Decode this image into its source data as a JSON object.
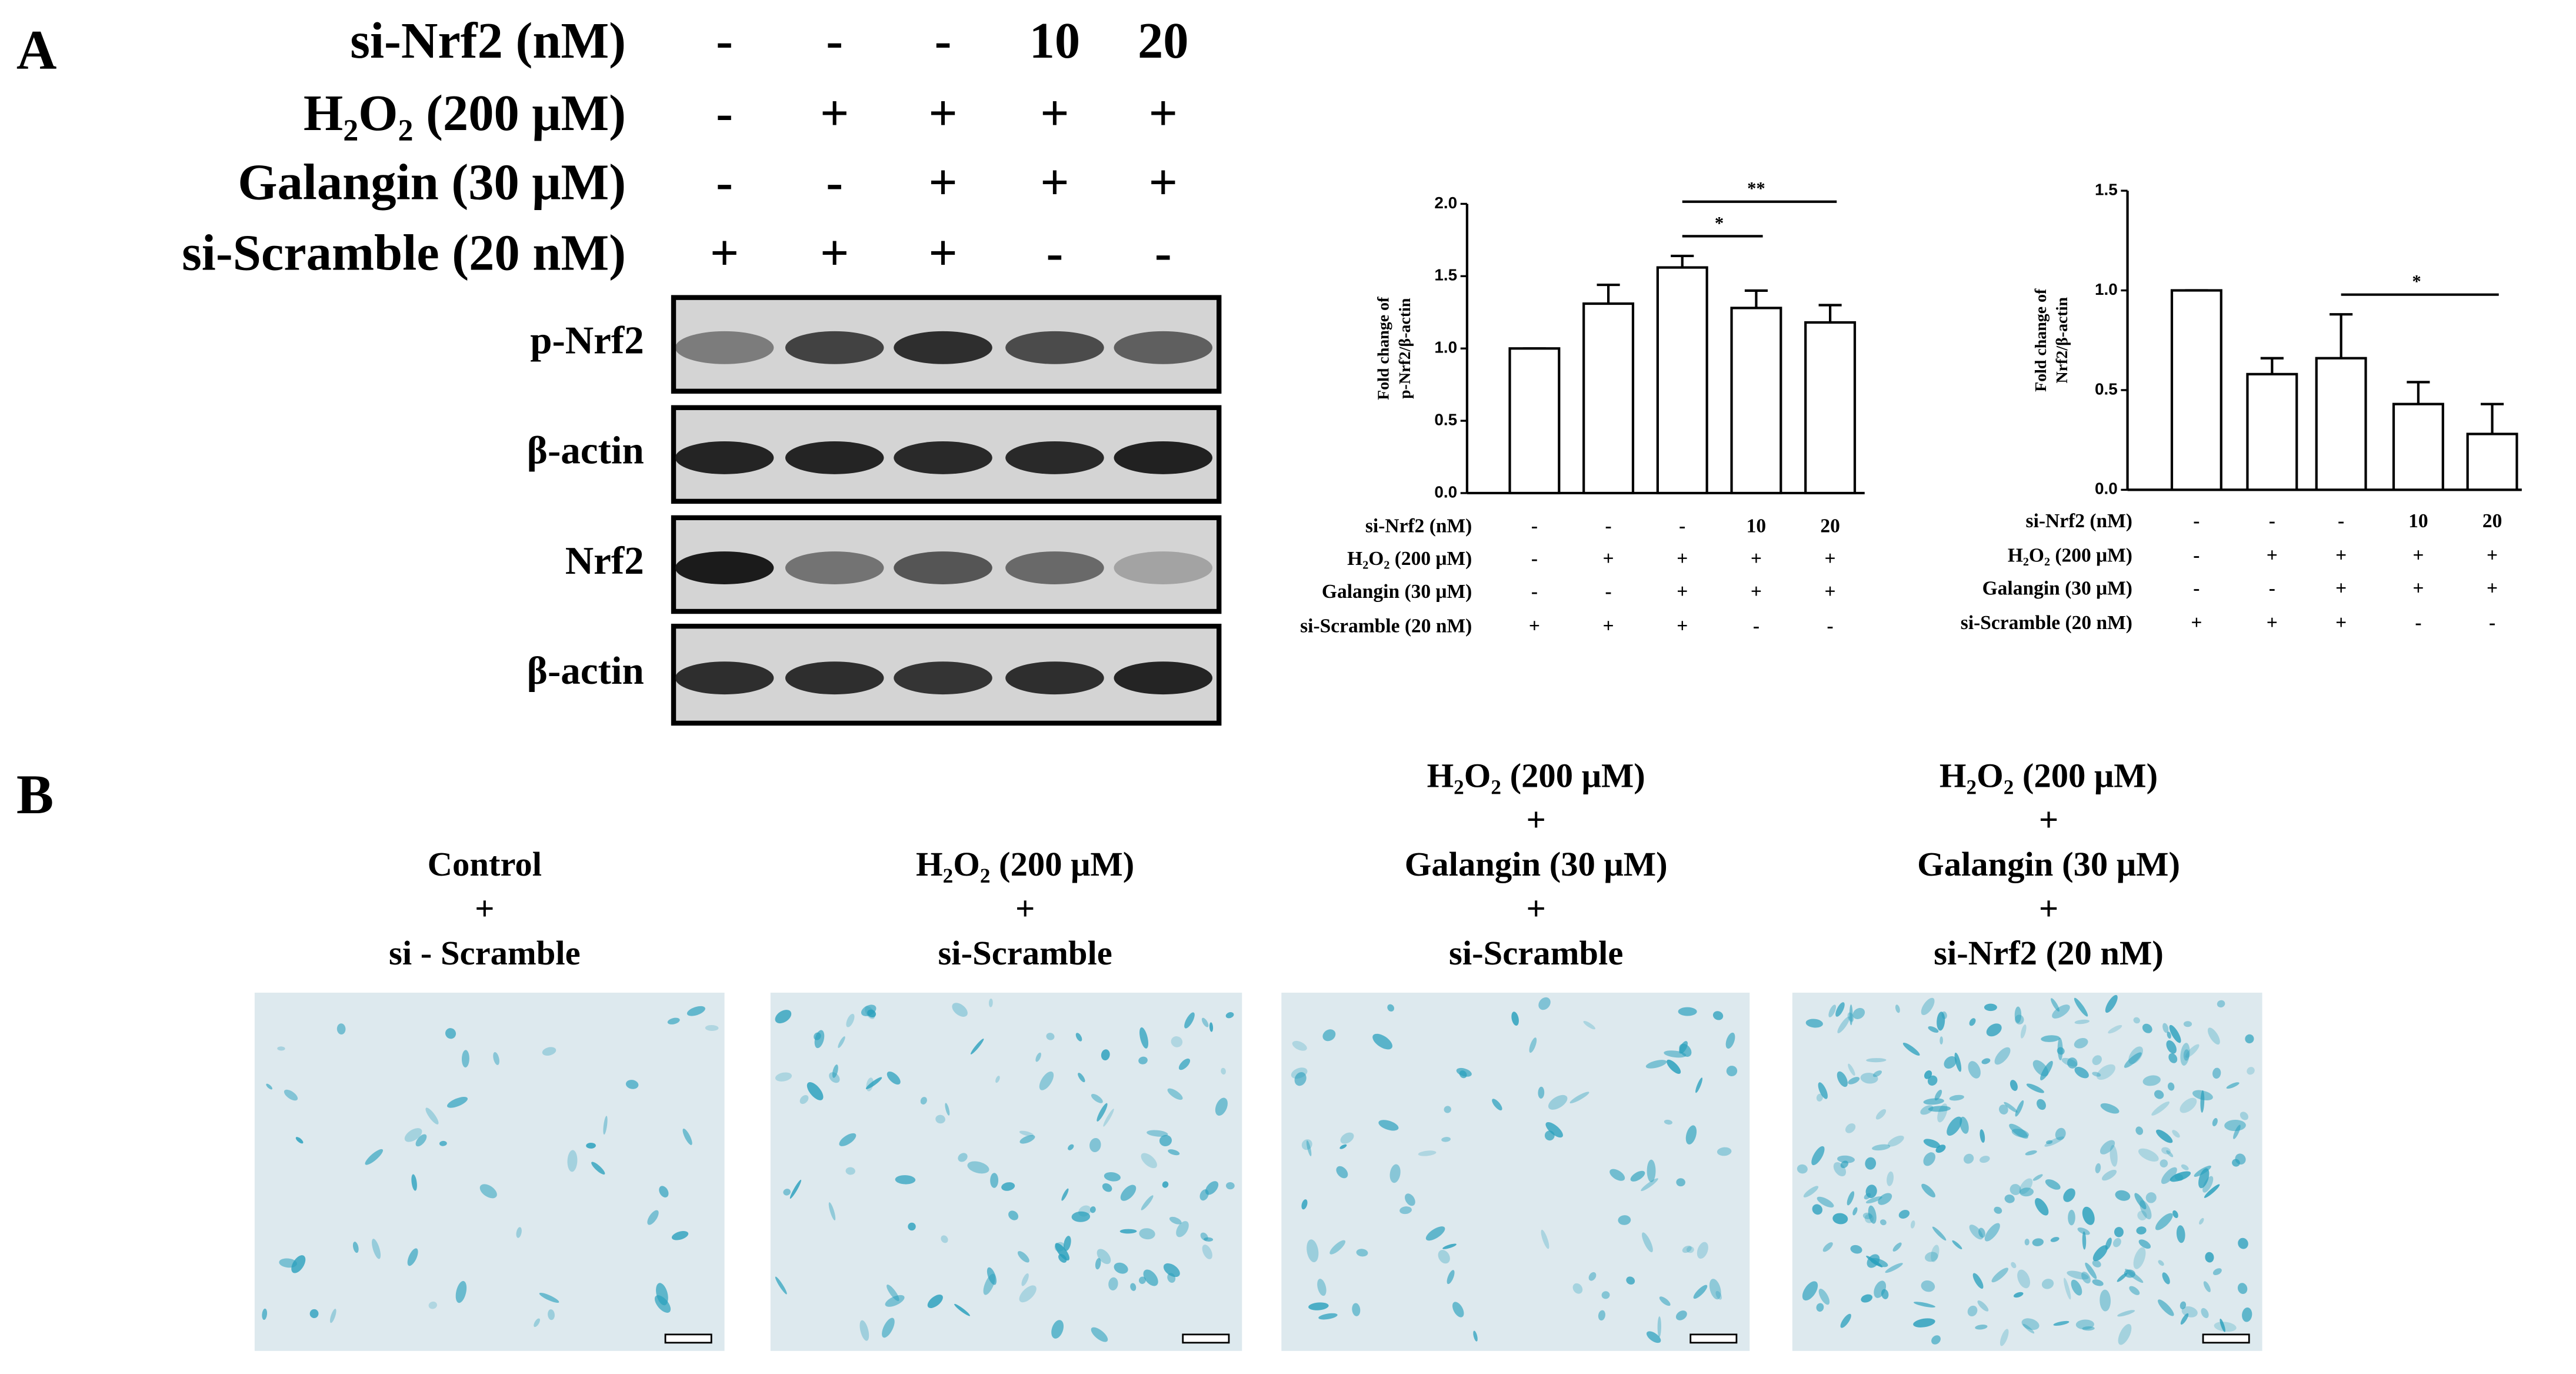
{
  "panel_labels": [
    "A",
    "B"
  ],
  "blot": {
    "conditions": [
      {
        "name": "si-Nrf2 (nM)",
        "values": [
          "-",
          "-",
          "-",
          "10",
          "20"
        ]
      },
      {
        "name": "H₂O₂ (200 μM)",
        "values": [
          "-",
          "+",
          "+",
          "+",
          "+"
        ]
      },
      {
        "name": "Galangin (30 μM)",
        "values": [
          "-",
          "-",
          "+",
          "+",
          "+"
        ]
      },
      {
        "name": "si-Scramble (20 nM)",
        "values": [
          "+",
          "+",
          "+",
          "-",
          "-"
        ]
      }
    ],
    "bands": [
      "p-Nrf2",
      "β-actin",
      "Nrf2",
      "β-actin"
    ]
  },
  "chart_data": [
    {
      "type": "bar",
      "y_label": [
        "Fold change of",
        "p-Nrf2/β-actin"
      ],
      "values": [
        1.0,
        1.31,
        1.56,
        1.28,
        1.18
      ],
      "errors": [
        0,
        0.13,
        0.08,
        0.12,
        0.12
      ],
      "color": "#ffffff",
      "edgecolor": "#000000",
      "ylim": [
        0,
        2.0
      ],
      "yticks": [
        {
          "value": 0,
          "label": "0.0"
        },
        {
          "value": 0.5,
          "label": "0.5"
        },
        {
          "value": 1.0,
          "label": "1.0"
        },
        {
          "value": 1.5,
          "label": "1.5"
        },
        {
          "value": 2.0,
          "label": "2.0"
        }
      ],
      "significance": [
        {
          "from": 2,
          "to": 3,
          "label": "*"
        },
        {
          "from": 2,
          "to": 4,
          "label": "**"
        }
      ],
      "conditions": [
        {
          "name": "si-Nrf2 (nM)",
          "values": [
            "-",
            "-",
            "-",
            "10",
            "20"
          ]
        },
        {
          "name": "H₂O₂ (200 μM)",
          "values": [
            "-",
            "+",
            "+",
            "+",
            "+"
          ]
        },
        {
          "name": "Galangin (30 μM)",
          "values": [
            "-",
            "-",
            "+",
            "+",
            "+"
          ]
        },
        {
          "name": "si-Scramble (20 nM)",
          "values": [
            "+",
            "+",
            "+",
            "-",
            "-"
          ]
        }
      ]
    },
    {
      "type": "bar",
      "y_label": [
        "Fold change of",
        "Nrf2/β-actin"
      ],
      "values": [
        1.0,
        0.58,
        0.66,
        0.43,
        0.28
      ],
      "errors": [
        0,
        0.08,
        0.22,
        0.11,
        0.15
      ],
      "color": "#ffffff",
      "edgecolor": "#000000",
      "ylim": [
        0,
        1.5
      ],
      "yticks": [
        {
          "value": 0,
          "label": "0.0"
        },
        {
          "value": 0.5,
          "label": "0.5"
        },
        {
          "value": 1.0,
          "label": "1.0"
        },
        {
          "value": 1.5,
          "label": "1.5"
        }
      ],
      "significance": [
        {
          "from": 2,
          "to": 4,
          "label": "*"
        }
      ],
      "conditions": [
        {
          "name": "si-Nrf2 (nM)",
          "values": [
            "-",
            "-",
            "-",
            "10",
            "20"
          ]
        },
        {
          "name": "H₂O₂ (200 μM)",
          "values": [
            "-",
            "+",
            "+",
            "+",
            "+"
          ]
        },
        {
          "name": "Galangin (30 μM)",
          "values": [
            "-",
            "-",
            "+",
            "+",
            "+"
          ]
        },
        {
          "name": "si-Scramble (20 nM)",
          "values": [
            "+",
            "+",
            "+",
            "-",
            "-"
          ]
        }
      ]
    }
  ],
  "images": {
    "captions": [
      [
        "Control",
        "+",
        "si - Scramble"
      ],
      [
        "H₂O₂ (200 μM)",
        "+",
        "si-Scramble"
      ],
      [
        "H₂O₂ (200 μM)",
        "+",
        "Galangin (30 μM)",
        "+",
        "si-Scramble"
      ],
      [
        "H₂O₂ (200 μM)",
        "+",
        "Galangin (30 μM)",
        "+",
        "si-Nrf2 (20 nM)"
      ]
    ]
  }
}
